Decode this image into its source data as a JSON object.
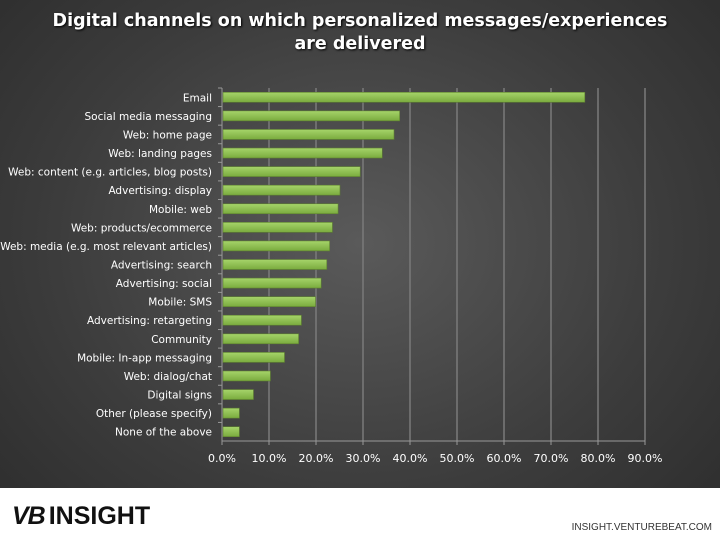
{
  "chart_data": {
    "type": "bar",
    "orientation": "horizontal",
    "title": "Digital channels on which personalized messages/experiences are delivered",
    "title_lines": [
      "Digital channels on which personalized messages/experiences",
      "are delivered"
    ],
    "categories": [
      "Email",
      "Social media messaging",
      "Web: home page",
      "Web: landing pages",
      "Web: content (e.g. articles, blog posts)",
      "Advertising: display",
      "Mobile: web",
      "Web: products/ecommerce",
      "Web: media (e.g. most relevant articles)",
      "Advertising: search",
      "Advertising: social",
      "Mobile: SMS",
      "Advertising: retargeting",
      "Community",
      "Mobile: In-app messaging",
      "Web: dialog/chat",
      "Digital signs",
      "Other (please specify)",
      "None of the above"
    ],
    "values": [
      77.2,
      37.8,
      36.6,
      34.1,
      29.4,
      25.1,
      24.7,
      23.5,
      22.9,
      22.3,
      21.1,
      19.9,
      16.9,
      16.3,
      13.3,
      10.3,
      6.7,
      3.7,
      3.7
    ],
    "xlabel": "",
    "ylabel": "",
    "xlim": [
      0,
      90
    ],
    "xticks": [
      "0.0%",
      "10.0%",
      "20.0%",
      "30.0%",
      "40.0%",
      "50.0%",
      "60.0%",
      "70.0%",
      "80.0%",
      "90.0%"
    ],
    "grid": true,
    "bar_color": "#8bbd4f"
  },
  "footer": {
    "logo_vb": "VB",
    "logo_text": "INSIGHT",
    "site": "INSIGHT.VENTUREBEAT.COM"
  }
}
